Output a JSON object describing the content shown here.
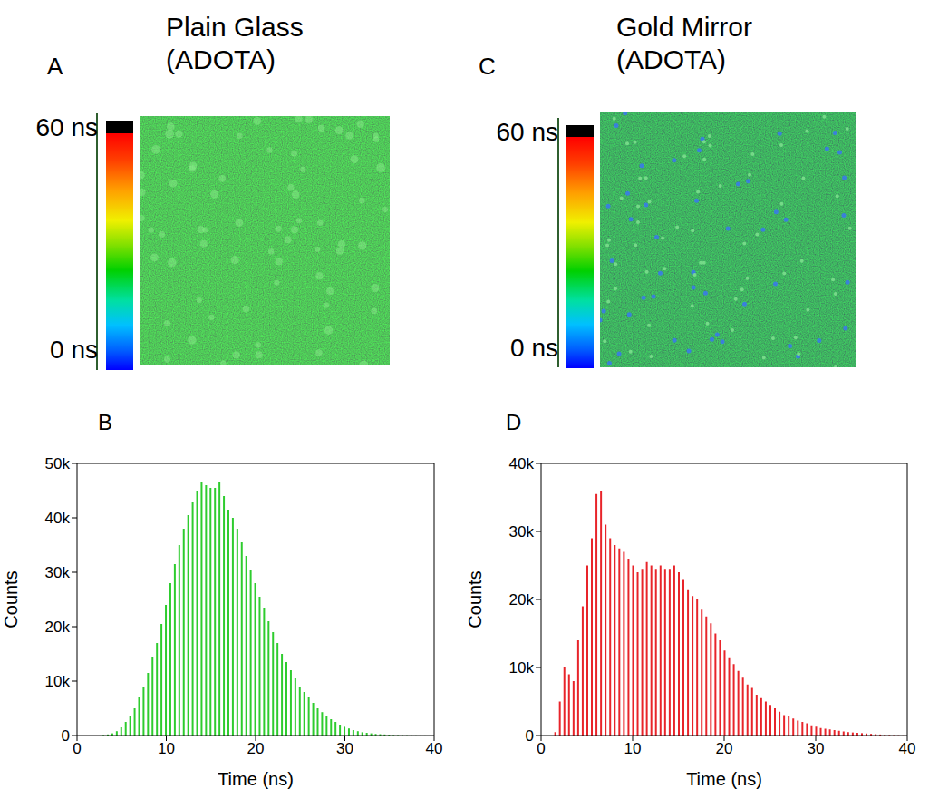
{
  "chart_data": [
    {
      "type": "image",
      "panel": "A",
      "title": "Plain Glass (ADOTA)",
      "colorbar": {
        "range": [
          0,
          60
        ],
        "ticks": [
          {
            "value": 60,
            "label": "60 ns"
          },
          {
            "value": 0,
            "label": "0 ns"
          }
        ]
      }
    },
    {
      "type": "image",
      "panel": "C",
      "title": "Gold Mirror (ADOTA)",
      "colorbar": {
        "range": [
          0,
          60
        ],
        "ticks": [
          {
            "value": 60,
            "label": "60 ns"
          },
          {
            "value": 0,
            "label": "0 ns"
          }
        ]
      }
    },
    {
      "type": "bar",
      "panel": "B",
      "xlabel": "Time (ns)",
      "ylabel": "Counts",
      "color": "#2ecc2e",
      "x": [
        0,
        0.5,
        1,
        1.5,
        2,
        2.5,
        3,
        3.5,
        4,
        4.5,
        5,
        5.5,
        6,
        6.5,
        7,
        7.5,
        8,
        8.5,
        9,
        9.5,
        10,
        10.5,
        11,
        11.5,
        12,
        12.5,
        13,
        13.5,
        14,
        14.5,
        15,
        15.5,
        16,
        16.5,
        17,
        17.5,
        18,
        18.5,
        19,
        19.5,
        20,
        20.5,
        21,
        21.5,
        22,
        22.5,
        23,
        23.5,
        24,
        24.5,
        25,
        25.5,
        26,
        26.5,
        27,
        27.5,
        28,
        28.5,
        29,
        29.5,
        30,
        30.5,
        31,
        31.5,
        32,
        32.5,
        33,
        33.5,
        34,
        34.5,
        35,
        35.5,
        36,
        36.5,
        37,
        37.5,
        38,
        38.5,
        39,
        39.5
      ],
      "values": [
        0,
        0,
        0,
        0,
        0,
        0,
        100,
        200,
        400,
        800,
        1500,
        2500,
        3500,
        5000,
        7000,
        9000,
        11500,
        14500,
        17000,
        20500,
        24000,
        28000,
        31500,
        35000,
        38000,
        40500,
        43000,
        45000,
        46500,
        46000,
        45500,
        45500,
        46500,
        44000,
        41500,
        40000,
        38000,
        35500,
        33000,
        30500,
        28000,
        25500,
        23500,
        21000,
        19000,
        17000,
        15000,
        13500,
        12000,
        10500,
        9000,
        8000,
        7000,
        6000,
        5000,
        4300,
        3600,
        3000,
        2500,
        2000,
        1600,
        1300,
        1000,
        800,
        600,
        500,
        400,
        300,
        250,
        200,
        150,
        100,
        80,
        60,
        40,
        30,
        20,
        10,
        10,
        0
      ],
      "xlim": [
        0,
        40
      ],
      "xticks": [
        0,
        10,
        20,
        30,
        40
      ],
      "ylim": [
        0,
        50000
      ],
      "yticks": [
        0,
        {
          "value": 10000,
          "label": "10k"
        },
        {
          "value": 20000,
          "label": "20k"
        },
        {
          "value": 30000,
          "label": "30k"
        },
        {
          "value": 40000,
          "label": "40k"
        },
        {
          "value": 50000,
          "label": "50k"
        }
      ]
    },
    {
      "type": "bar",
      "panel": "D",
      "xlabel": "Time (ns)",
      "ylabel": "Counts",
      "color": "#e8242a",
      "x": [
        0,
        0.5,
        1,
        1.5,
        2,
        2.5,
        3,
        3.5,
        4,
        4.5,
        5,
        5.5,
        6,
        6.5,
        7,
        7.5,
        8,
        8.5,
        9,
        9.5,
        10,
        10.5,
        11,
        11.5,
        12,
        12.5,
        13,
        13.5,
        14,
        14.5,
        15,
        15.5,
        16,
        16.5,
        17,
        17.5,
        18,
        18.5,
        19,
        19.5,
        20,
        20.5,
        21,
        21.5,
        22,
        22.5,
        23,
        23.5,
        24,
        24.5,
        25,
        25.5,
        26,
        26.5,
        27,
        27.5,
        28,
        28.5,
        29,
        29.5,
        30,
        30.5,
        31,
        31.5,
        32,
        32.5,
        33,
        33.5,
        34,
        34.5,
        35,
        35.5,
        36,
        36.5,
        37,
        37.5,
        38,
        38.5,
        39,
        39.5
      ],
      "values": [
        0,
        0,
        0,
        500,
        5000,
        10000,
        9000,
        8000,
        14000,
        19000,
        25000,
        29000,
        35500,
        36000,
        31000,
        29000,
        28000,
        27500,
        27000,
        26000,
        25000,
        24000,
        24500,
        25500,
        25000,
        24500,
        25000,
        24500,
        24500,
        25000,
        24000,
        23000,
        21500,
        20500,
        20000,
        18500,
        17500,
        16500,
        15000,
        14000,
        12500,
        11500,
        10500,
        9500,
        8500,
        7500,
        7000,
        6000,
        5500,
        5000,
        4500,
        4000,
        3500,
        3000,
        2800,
        2500,
        2200,
        2000,
        1800,
        1500,
        1300,
        1100,
        1000,
        900,
        800,
        700,
        600,
        500,
        450,
        400,
        350,
        300,
        250,
        200,
        150,
        100,
        80,
        60,
        40,
        20
      ],
      "xlim": [
        0,
        40
      ],
      "xticks": [
        0,
        10,
        20,
        30,
        40
      ],
      "ylim": [
        0,
        40000
      ],
      "yticks": [
        0,
        {
          "value": 10000,
          "label": "10k"
        },
        {
          "value": 20000,
          "label": "20k"
        },
        {
          "value": 30000,
          "label": "30k"
        },
        {
          "value": 40000,
          "label": "40k"
        }
      ]
    }
  ]
}
